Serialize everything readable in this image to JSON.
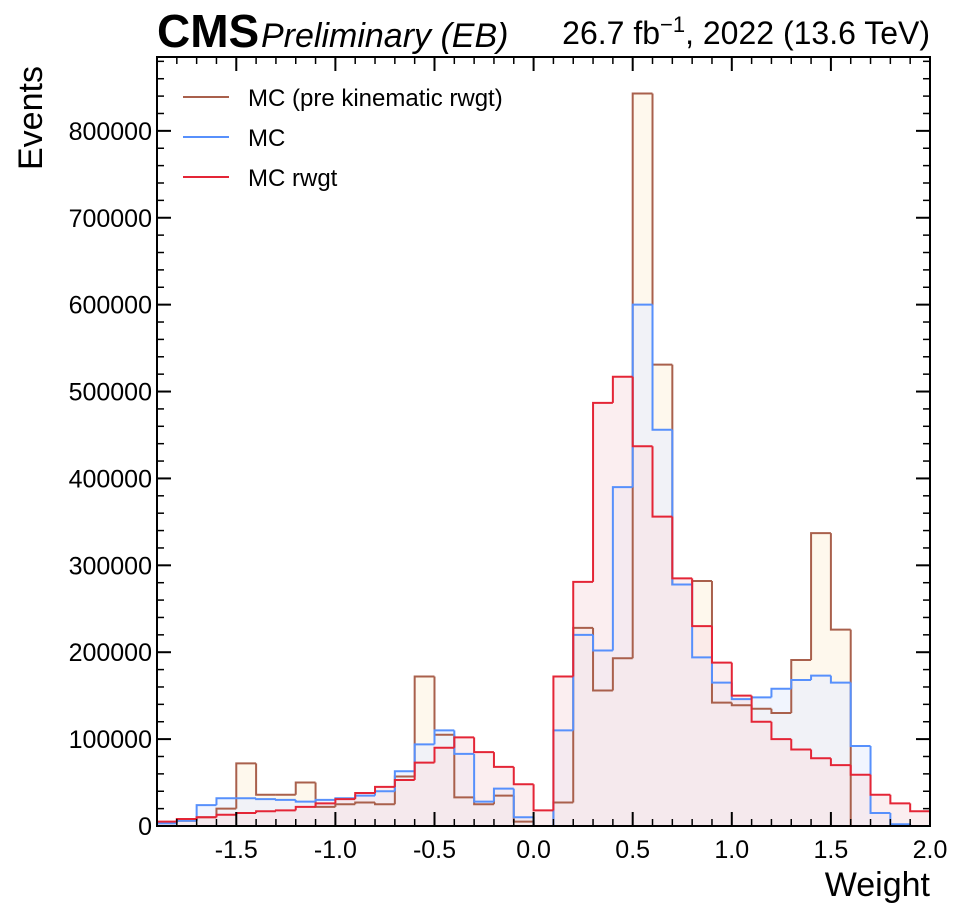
{
  "header": {
    "experiment": "CMS",
    "status": "Preliminary (EB)",
    "lumi_prefix": "26.7 fb",
    "lumi_exp": "−1",
    "lumi_suffix": ", 2022 (13.6 TeV)"
  },
  "chart_data": {
    "type": "histogram-step",
    "xlabel": "Weight",
    "ylabel": "Events",
    "xlim": [
      -1.9,
      2.0
    ],
    "ylim": [
      0,
      885000
    ],
    "x_ticks": [
      -1.5,
      -1.0,
      -0.5,
      0.0,
      0.5,
      1.0,
      1.5,
      2.0
    ],
    "x_tick_labels": [
      "-1.5",
      "-1.0",
      "-0.5",
      "0.0",
      "0.5",
      "1.0",
      "1.5",
      "2.0"
    ],
    "y_ticks": [
      0,
      100000,
      200000,
      300000,
      400000,
      500000,
      600000,
      700000,
      800000
    ],
    "y_tick_labels": [
      "0",
      "100000",
      "200000",
      "300000",
      "400000",
      "500000",
      "600000",
      "700000",
      "800000"
    ],
    "bin_edges": [
      -1.9,
      -1.8,
      -1.7,
      -1.6,
      -1.5,
      -1.4,
      -1.3,
      -1.2,
      -1.1,
      -1.0,
      -0.9,
      -0.8,
      -0.7,
      -0.6,
      -0.5,
      -0.4,
      -0.3,
      -0.2,
      -0.1,
      0.0,
      0.1,
      0.2,
      0.3,
      0.4,
      0.5,
      0.6,
      0.7,
      0.8,
      0.9,
      1.0,
      1.1,
      1.2,
      1.3,
      1.4,
      1.5,
      1.6,
      1.7,
      1.8,
      1.9,
      2.0
    ],
    "legend_position": "top-left",
    "grid": false,
    "series": [
      {
        "name": "MC (pre kinematic rwgt)",
        "color": "#a9604c",
        "fill": "#fdf3e1",
        "values": [
          4000,
          6000,
          10000,
          20000,
          72000,
          36000,
          36000,
          50000,
          22000,
          25000,
          27000,
          25000,
          57000,
          172000,
          105000,
          33000,
          25000,
          35000,
          5000,
          0,
          27000,
          228000,
          156000,
          193000,
          843000,
          531000,
          278000,
          282000,
          142000,
          139000,
          135000,
          130000,
          191000,
          337000,
          226000,
          0,
          0,
          0,
          0
        ]
      },
      {
        "name": "MC",
        "color": "#5790fc",
        "fill": "#e8effe",
        "values": [
          3000,
          6000,
          24000,
          32000,
          32000,
          31000,
          30000,
          28000,
          30000,
          32000,
          35000,
          40000,
          63000,
          94000,
          110000,
          83000,
          28000,
          43000,
          10000,
          0,
          110000,
          220000,
          202000,
          390000,
          600000,
          456000,
          278000,
          194000,
          165000,
          146000,
          148000,
          158000,
          168000,
          173000,
          165000,
          92000,
          15000,
          2000,
          0
        ]
      },
      {
        "name": "MC rwgt",
        "color": "#e42536",
        "fill": "#f9e2e6",
        "values": [
          5000,
          8000,
          10000,
          13000,
          15000,
          17000,
          18000,
          22000,
          26000,
          31000,
          38000,
          45000,
          53000,
          73000,
          90000,
          102000,
          85000,
          68000,
          48000,
          18000,
          172000,
          281000,
          487000,
          517000,
          437000,
          356000,
          285000,
          230000,
          188000,
          150000,
          120000,
          100000,
          88000,
          78000,
          70000,
          59000,
          36000,
          26000,
          17000
        ]
      }
    ]
  }
}
